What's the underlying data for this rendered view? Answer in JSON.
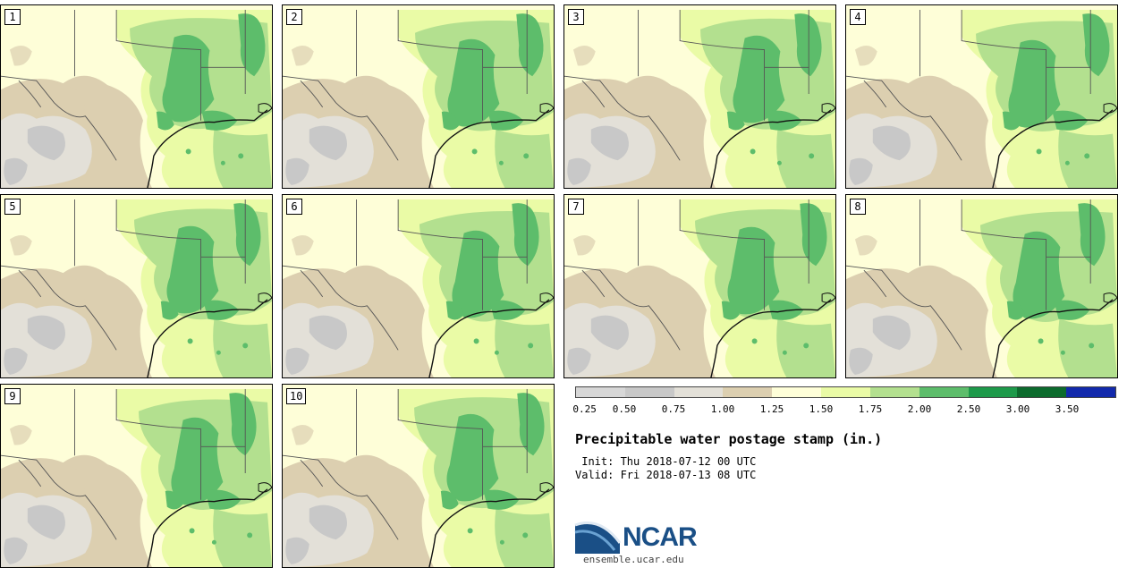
{
  "title": "Precipitable water postage stamp (in.)",
  "init": " Init: Thu 2018-07-12 00 UTC",
  "valid": "Valid: Fri 2018-07-13 08 UTC",
  "members": [
    "1",
    "2",
    "3",
    "4",
    "5",
    "6",
    "7",
    "8",
    "9",
    "10"
  ],
  "colorbar": {
    "colors": [
      "#d7d7d7",
      "#c8c8c8",
      "#e3e0d8",
      "#dccfb0",
      "#fefed8",
      "#eafba6",
      "#b3e08f",
      "#5dbd6b",
      "#1d9a4a",
      "#0c6b2d",
      "#1229ac"
    ],
    "labels": [
      "0.25",
      "0.50",
      "0.75",
      "1.00",
      "1.25",
      "1.50",
      "1.75",
      "2.00",
      "2.50",
      "3.00",
      "3.50"
    ]
  },
  "logo": {
    "text": "NCAR",
    "site": "ensemble.ucar.edu",
    "icon": "ncar-swoosh-logo"
  }
}
